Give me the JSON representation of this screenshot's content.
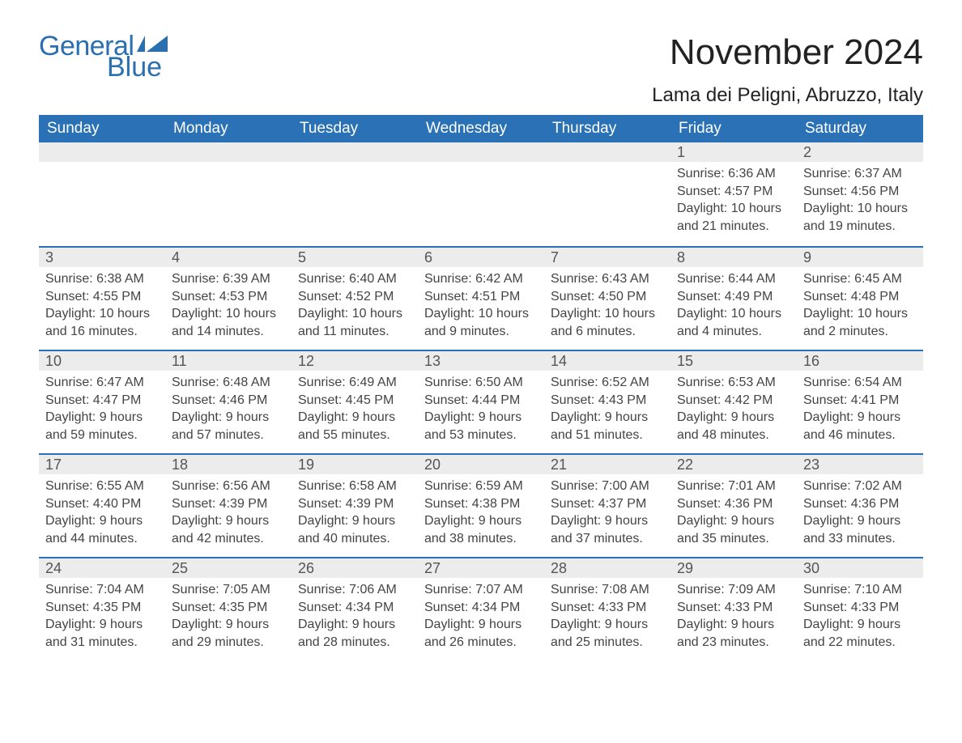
{
  "logo": {
    "text1": "General",
    "text2": "Blue",
    "color": "#2a6fb0"
  },
  "title": "November 2024",
  "location": "Lama dei Peligni, Abruzzo, Italy",
  "header_bg": "#2a72b5",
  "header_fg": "#ffffff",
  "daynum_bg": "#ececec",
  "rule_color": "#2a72b5",
  "weekdays": [
    "Sunday",
    "Monday",
    "Tuesday",
    "Wednesday",
    "Thursday",
    "Friday",
    "Saturday"
  ],
  "weeks": [
    [
      null,
      null,
      null,
      null,
      null,
      {
        "n": "1",
        "sunrise": "6:36 AM",
        "sunset": "4:57 PM",
        "daylight": "10 hours and 21 minutes."
      },
      {
        "n": "2",
        "sunrise": "6:37 AM",
        "sunset": "4:56 PM",
        "daylight": "10 hours and 19 minutes."
      }
    ],
    [
      {
        "n": "3",
        "sunrise": "6:38 AM",
        "sunset": "4:55 PM",
        "daylight": "10 hours and 16 minutes."
      },
      {
        "n": "4",
        "sunrise": "6:39 AM",
        "sunset": "4:53 PM",
        "daylight": "10 hours and 14 minutes."
      },
      {
        "n": "5",
        "sunrise": "6:40 AM",
        "sunset": "4:52 PM",
        "daylight": "10 hours and 11 minutes."
      },
      {
        "n": "6",
        "sunrise": "6:42 AM",
        "sunset": "4:51 PM",
        "daylight": "10 hours and 9 minutes."
      },
      {
        "n": "7",
        "sunrise": "6:43 AM",
        "sunset": "4:50 PM",
        "daylight": "10 hours and 6 minutes."
      },
      {
        "n": "8",
        "sunrise": "6:44 AM",
        "sunset": "4:49 PM",
        "daylight": "10 hours and 4 minutes."
      },
      {
        "n": "9",
        "sunrise": "6:45 AM",
        "sunset": "4:48 PM",
        "daylight": "10 hours and 2 minutes."
      }
    ],
    [
      {
        "n": "10",
        "sunrise": "6:47 AM",
        "sunset": "4:47 PM",
        "daylight": "9 hours and 59 minutes."
      },
      {
        "n": "11",
        "sunrise": "6:48 AM",
        "sunset": "4:46 PM",
        "daylight": "9 hours and 57 minutes."
      },
      {
        "n": "12",
        "sunrise": "6:49 AM",
        "sunset": "4:45 PM",
        "daylight": "9 hours and 55 minutes."
      },
      {
        "n": "13",
        "sunrise": "6:50 AM",
        "sunset": "4:44 PM",
        "daylight": "9 hours and 53 minutes."
      },
      {
        "n": "14",
        "sunrise": "6:52 AM",
        "sunset": "4:43 PM",
        "daylight": "9 hours and 51 minutes."
      },
      {
        "n": "15",
        "sunrise": "6:53 AM",
        "sunset": "4:42 PM",
        "daylight": "9 hours and 48 minutes."
      },
      {
        "n": "16",
        "sunrise": "6:54 AM",
        "sunset": "4:41 PM",
        "daylight": "9 hours and 46 minutes."
      }
    ],
    [
      {
        "n": "17",
        "sunrise": "6:55 AM",
        "sunset": "4:40 PM",
        "daylight": "9 hours and 44 minutes."
      },
      {
        "n": "18",
        "sunrise": "6:56 AM",
        "sunset": "4:39 PM",
        "daylight": "9 hours and 42 minutes."
      },
      {
        "n": "19",
        "sunrise": "6:58 AM",
        "sunset": "4:39 PM",
        "daylight": "9 hours and 40 minutes."
      },
      {
        "n": "20",
        "sunrise": "6:59 AM",
        "sunset": "4:38 PM",
        "daylight": "9 hours and 38 minutes."
      },
      {
        "n": "21",
        "sunrise": "7:00 AM",
        "sunset": "4:37 PM",
        "daylight": "9 hours and 37 minutes."
      },
      {
        "n": "22",
        "sunrise": "7:01 AM",
        "sunset": "4:36 PM",
        "daylight": "9 hours and 35 minutes."
      },
      {
        "n": "23",
        "sunrise": "7:02 AM",
        "sunset": "4:36 PM",
        "daylight": "9 hours and 33 minutes."
      }
    ],
    [
      {
        "n": "24",
        "sunrise": "7:04 AM",
        "sunset": "4:35 PM",
        "daylight": "9 hours and 31 minutes."
      },
      {
        "n": "25",
        "sunrise": "7:05 AM",
        "sunset": "4:35 PM",
        "daylight": "9 hours and 29 minutes."
      },
      {
        "n": "26",
        "sunrise": "7:06 AM",
        "sunset": "4:34 PM",
        "daylight": "9 hours and 28 minutes."
      },
      {
        "n": "27",
        "sunrise": "7:07 AM",
        "sunset": "4:34 PM",
        "daylight": "9 hours and 26 minutes."
      },
      {
        "n": "28",
        "sunrise": "7:08 AM",
        "sunset": "4:33 PM",
        "daylight": "9 hours and 25 minutes."
      },
      {
        "n": "29",
        "sunrise": "7:09 AM",
        "sunset": "4:33 PM",
        "daylight": "9 hours and 23 minutes."
      },
      {
        "n": "30",
        "sunrise": "7:10 AM",
        "sunset": "4:33 PM",
        "daylight": "9 hours and 22 minutes."
      }
    ]
  ],
  "labels": {
    "sunrise": "Sunrise: ",
    "sunset": "Sunset: ",
    "daylight": "Daylight: "
  }
}
